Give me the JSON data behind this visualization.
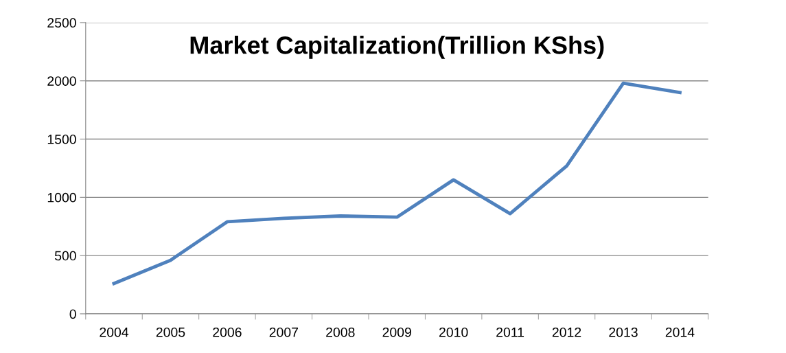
{
  "chart_data": {
    "type": "line",
    "title": "Market Capitalization(Trillion KShs)",
    "categories": [
      "2004",
      "2005",
      "2006",
      "2007",
      "2008",
      "2009",
      "2010",
      "2011",
      "2012",
      "2013",
      "2014"
    ],
    "series": [
      {
        "color": "#4f81bd",
        "values": [
          260,
          460,
          790,
          820,
          840,
          830,
          1150,
          860,
          1270,
          1980,
          1900
        ]
      }
    ],
    "ylim": [
      0,
      2500
    ],
    "yticks": [
      0,
      500,
      1000,
      1500,
      2000,
      2500
    ],
    "grid": "y",
    "marker": "none",
    "line_style": "solid"
  }
}
